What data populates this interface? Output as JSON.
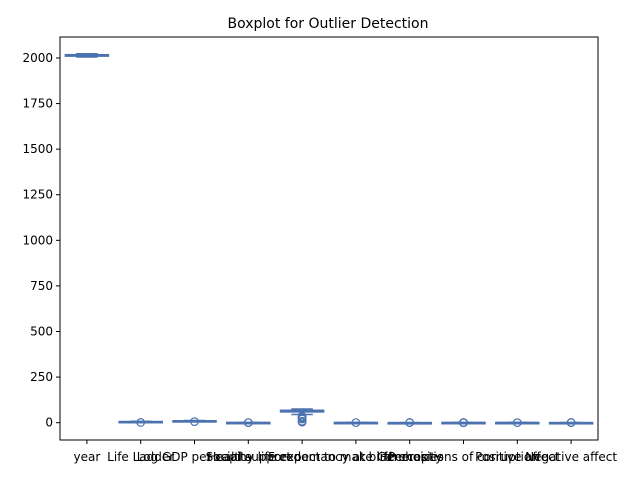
{
  "chart_data": {
    "type": "boxplot",
    "title": "Boxplot for Outlier Detection",
    "xlabel": "",
    "ylabel": "",
    "ylim": [
      -95,
      2115
    ],
    "yticks": [
      0,
      250,
      500,
      750,
      1000,
      1250,
      1500,
      1750,
      2000
    ],
    "grid": false,
    "box_color": "#4c72b0",
    "categories": [
      "year",
      "Life Ladder",
      "Log GDP per capita",
      "Social support",
      "Healthy life expectancy at birth",
      "Freedom to make life choices",
      "Generosity",
      "Perceptions of corruption",
      "Positive affect",
      "Negative affect"
    ],
    "boxes": [
      {
        "min": 2005,
        "q1": 2010,
        "median": 2014,
        "q3": 2018,
        "max": 2023,
        "outliers": []
      },
      {
        "min": 1.3,
        "q1": 4.6,
        "median": 5.4,
        "q3": 6.3,
        "max": 8.0,
        "outliers": [
          1.3
        ]
      },
      {
        "min": 5.5,
        "q1": 8.5,
        "median": 9.5,
        "q3": 10.4,
        "max": 11.7,
        "outliers": [
          5.5
        ]
      },
      {
        "min": 0.4,
        "q1": 0.75,
        "median": 0.83,
        "q3": 0.9,
        "max": 0.99,
        "outliers": [
          0.3,
          0.4
        ]
      },
      {
        "min": 45,
        "q1": 59,
        "median": 65,
        "q3": 68,
        "max": 75,
        "outliers": [
          35,
          30,
          25,
          20,
          8,
          3
        ]
      },
      {
        "min": 0.4,
        "q1": 0.66,
        "median": 0.77,
        "q3": 0.86,
        "max": 0.99,
        "outliers": [
          0.3
        ]
      },
      {
        "min": -0.3,
        "q1": -0.1,
        "median": -0.02,
        "q3": 0.09,
        "max": 0.4,
        "outliers": [
          0.6,
          0.7
        ]
      },
      {
        "min": 0.4,
        "q1": 0.69,
        "median": 0.8,
        "q3": 0.87,
        "max": 0.98,
        "outliers": [
          0.05,
          0.1,
          0.2,
          0.3
        ]
      },
      {
        "min": 0.3,
        "q1": 0.57,
        "median": 0.66,
        "q3": 0.74,
        "max": 0.88,
        "outliers": [
          0.2
        ]
      },
      {
        "min": 0.08,
        "q1": 0.21,
        "median": 0.26,
        "q3": 0.33,
        "max": 0.5,
        "outliers": [
          0.6,
          0.7
        ]
      }
    ]
  }
}
